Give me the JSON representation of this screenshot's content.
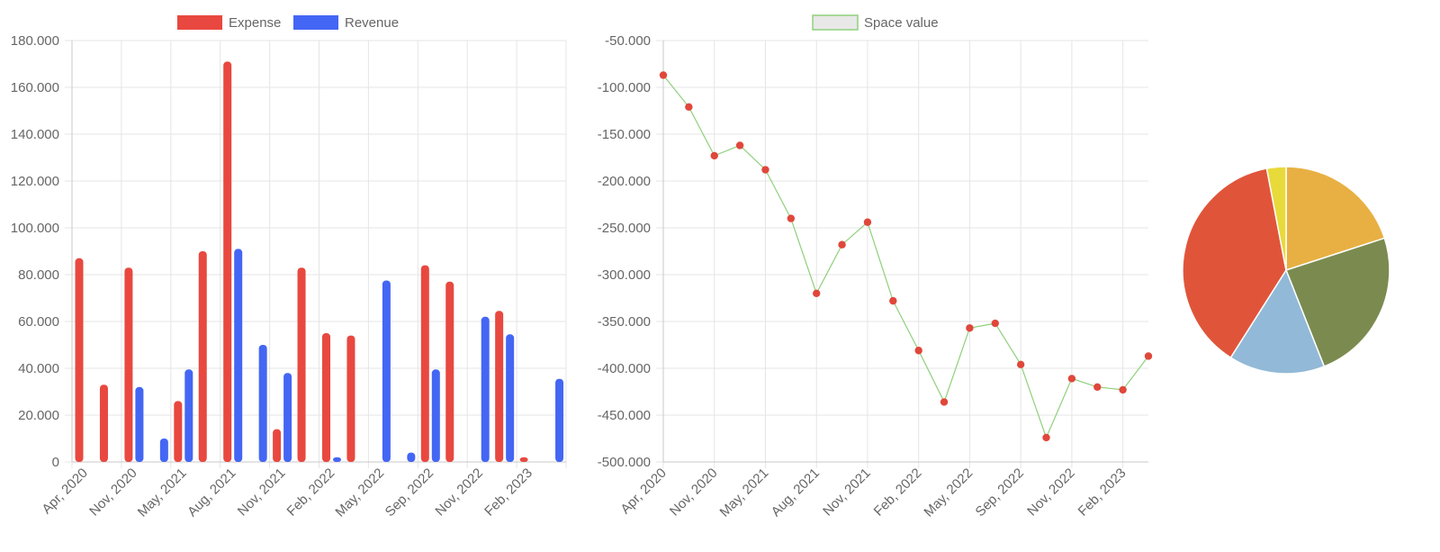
{
  "colors": {
    "expense": "#e8483f",
    "revenue": "#4466f4",
    "line": "#8fd07c",
    "point": "#e0473b",
    "grid": "#e5e5e5",
    "axis": "#c8c8c8",
    "tick_text": "#666666",
    "pie": [
      "#e8b043",
      "#7b8b50",
      "#92b9d7",
      "#e0553a",
      "#e8da3a"
    ]
  },
  "chart_data": [
    {
      "type": "bar",
      "legend": {
        "placement": "top-center",
        "items": [
          {
            "label": "Expense",
            "color": "#e8483f"
          },
          {
            "label": "Revenue",
            "color": "#4466f4"
          }
        ]
      },
      "x_tick_labels": [
        "Apr, 2020",
        "Nov, 2020",
        "May, 2021",
        "Aug, 2021",
        "Nov, 2021",
        "Feb, 2022",
        "May, 2022",
        "Sep, 2022",
        "Nov, 2022",
        "Feb, 2023"
      ],
      "y_tick_labels": [
        "180.000",
        "160.000",
        "140.000",
        "120.000",
        "100.000",
        "80.000",
        "60.000",
        "40.000",
        "20.000",
        "0"
      ],
      "ylim": [
        0,
        180000
      ],
      "grid": true,
      "series": [
        {
          "name": "Expense",
          "values": [
            87000,
            33000,
            83000,
            0,
            26000,
            90000,
            171000,
            0,
            14000,
            83000,
            55000,
            54000,
            0,
            0,
            84000,
            77000,
            0,
            64500,
            2000,
            0
          ]
        },
        {
          "name": "Revenue",
          "values": [
            0,
            0,
            32000,
            10000,
            39500,
            0,
            91000,
            50000,
            38000,
            0,
            2000,
            0,
            77500,
            4000,
            39500,
            0,
            62000,
            54500,
            0,
            35500
          ]
        }
      ]
    },
    {
      "type": "line",
      "legend": {
        "placement": "top-center",
        "items": [
          {
            "label": "Space value",
            "color": "#8fd07c"
          }
        ]
      },
      "x_tick_labels": [
        "Apr, 2020",
        "Nov, 2020",
        "May, 2021",
        "Aug, 2021",
        "Nov, 2021",
        "Feb, 2022",
        "May, 2022",
        "Sep, 2022",
        "Nov, 2022",
        "Feb, 2023"
      ],
      "y_tick_labels": [
        "-50.000",
        "-100.000",
        "-150.000",
        "-200.000",
        "-250.000",
        "-300.000",
        "-350.000",
        "-400.000",
        "-450.000",
        "-500.000"
      ],
      "ylim": [
        -500000,
        -50000
      ],
      "grid": true,
      "series": [
        {
          "name": "Space value",
          "values": [
            -87000,
            -121000,
            -173000,
            -162000,
            -188000,
            -240000,
            -320000,
            -268000,
            -244000,
            -328000,
            -381000,
            -436000,
            -357000,
            -352000,
            -396000,
            -474000,
            -411000,
            -420000,
            -423000,
            -387000
          ]
        }
      ]
    },
    {
      "type": "pie",
      "values": [
        20,
        24,
        15,
        38,
        3
      ]
    }
  ]
}
